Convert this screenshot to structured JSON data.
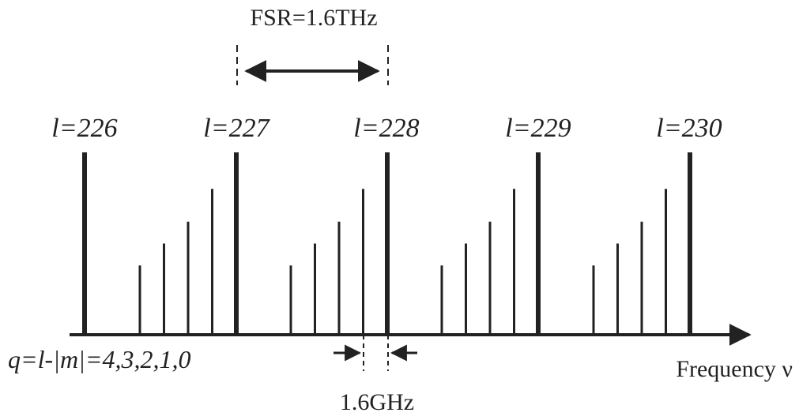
{
  "fsr_label": "FSR=1.6THz",
  "mode_labels": [
    "l=226",
    "l=227",
    "l=228",
    "l=229",
    "l=230"
  ],
  "q_label": "q=l-|m|=4,3,2,1,0",
  "axis_label": "Frequency ν",
  "spacing_label": "1.6GHz",
  "side_mode_levels": [
    0.38,
    0.5,
    0.62,
    0.8
  ],
  "colors": {
    "ink": "#222222",
    "background": "#ffffff"
  }
}
